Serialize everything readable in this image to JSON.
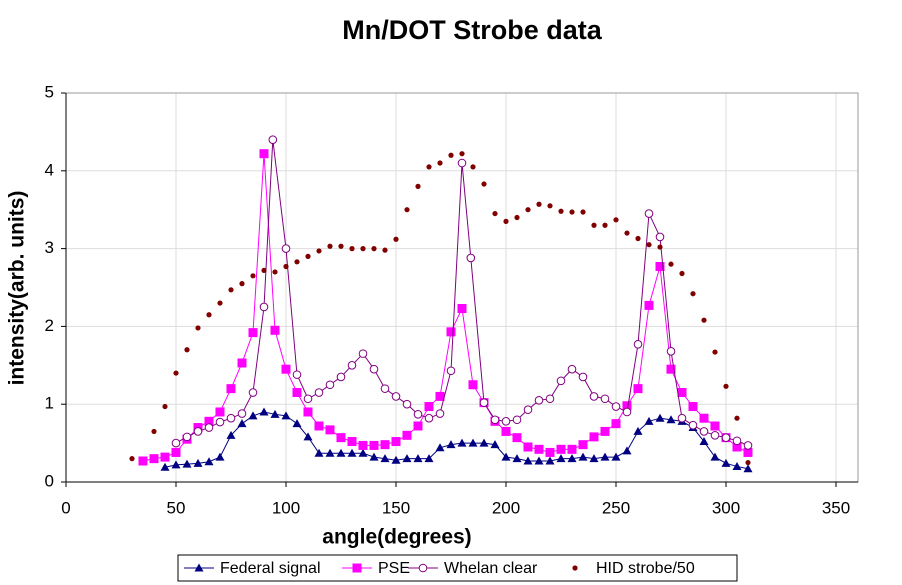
{
  "chart_data": {
    "type": "line",
    "title": "Mn/DOT Strobe data",
    "x_label": "angle(degrees)",
    "y_label": "intensity(arb. units)",
    "xlim": [
      0,
      360
    ],
    "xticks": [
      0,
      50,
      100,
      150,
      200,
      250,
      300,
      350
    ],
    "ylim": [
      0,
      5
    ],
    "yticks": [
      0,
      1,
      2,
      3,
      4,
      5
    ],
    "grid": true,
    "legend": "bottom",
    "series": [
      {
        "name": "Federal signal",
        "color": "#000080",
        "marker": "triangle",
        "line": true,
        "x": [
          45,
          50,
          55,
          60,
          65,
          70,
          75,
          80,
          85,
          90,
          95,
          100,
          105,
          110,
          115,
          120,
          125,
          130,
          135,
          140,
          145,
          150,
          155,
          160,
          165,
          170,
          175,
          180,
          185,
          190,
          195,
          200,
          205,
          210,
          215,
          220,
          225,
          230,
          235,
          240,
          245,
          250,
          255,
          260,
          265,
          270,
          275,
          280,
          285,
          290,
          295,
          300,
          305,
          310
        ],
        "values": [
          0.19,
          0.22,
          0.23,
          0.24,
          0.26,
          0.32,
          0.6,
          0.75,
          0.85,
          0.9,
          0.87,
          0.85,
          0.75,
          0.58,
          0.37,
          0.37,
          0.37,
          0.37,
          0.37,
          0.32,
          0.3,
          0.28,
          0.3,
          0.3,
          0.3,
          0.44,
          0.48,
          0.5,
          0.5,
          0.5,
          0.48,
          0.32,
          0.3,
          0.27,
          0.27,
          0.27,
          0.3,
          0.3,
          0.32,
          0.3,
          0.32,
          0.32,
          0.4,
          0.65,
          0.78,
          0.82,
          0.8,
          0.78,
          0.7,
          0.52,
          0.32,
          0.24,
          0.2,
          0.17
        ]
      },
      {
        "name": "PSE",
        "color": "#ff00ff",
        "marker": "square",
        "line": true,
        "x": [
          35,
          40,
          45,
          50,
          55,
          60,
          65,
          70,
          75,
          80,
          85,
          90,
          95,
          100,
          105,
          110,
          115,
          120,
          125,
          130,
          135,
          140,
          145,
          150,
          155,
          160,
          165,
          170,
          175,
          180,
          185,
          190,
          195,
          200,
          205,
          210,
          215,
          220,
          225,
          230,
          235,
          240,
          245,
          250,
          255,
          260,
          265,
          270,
          275,
          280,
          285,
          290,
          295,
          300,
          305,
          310
        ],
        "values": [
          0.27,
          0.3,
          0.32,
          0.38,
          0.55,
          0.7,
          0.78,
          0.9,
          1.2,
          1.53,
          1.92,
          4.22,
          1.95,
          1.45,
          1.15,
          0.9,
          0.72,
          0.67,
          0.57,
          0.52,
          0.47,
          0.47,
          0.48,
          0.52,
          0.6,
          0.72,
          0.97,
          1.1,
          1.93,
          2.23,
          1.25,
          1.02,
          0.78,
          0.65,
          0.57,
          0.45,
          0.42,
          0.38,
          0.42,
          0.42,
          0.48,
          0.58,
          0.65,
          0.75,
          0.98,
          1.2,
          2.27,
          2.77,
          1.45,
          1.15,
          0.97,
          0.82,
          0.72,
          0.57,
          0.45,
          0.38
        ]
      },
      {
        "name": "Whelan clear",
        "color": "#800080",
        "marker": "circle",
        "line": true,
        "x": [
          50,
          55,
          60,
          65,
          70,
          75,
          80,
          85,
          90,
          94,
          100,
          105,
          110,
          115,
          120,
          125,
          130,
          135,
          140,
          145,
          150,
          155,
          160,
          165,
          170,
          175,
          180,
          184,
          190,
          195,
          200,
          205,
          210,
          215,
          220,
          225,
          230,
          235,
          240,
          245,
          250,
          255,
          260,
          265,
          270,
          275,
          280,
          285,
          290,
          295,
          300,
          305,
          310
        ],
        "values": [
          0.5,
          0.58,
          0.65,
          0.7,
          0.77,
          0.82,
          0.88,
          1.15,
          2.25,
          4.4,
          3.0,
          1.38,
          1.07,
          1.15,
          1.25,
          1.35,
          1.5,
          1.65,
          1.45,
          1.2,
          1.1,
          1.0,
          0.87,
          0.82,
          0.88,
          1.43,
          4.1,
          2.88,
          1.02,
          0.8,
          0.78,
          0.8,
          0.93,
          1.05,
          1.07,
          1.3,
          1.45,
          1.35,
          1.1,
          1.07,
          0.97,
          0.9,
          1.77,
          3.45,
          3.15,
          1.68,
          0.82,
          0.73,
          0.65,
          0.6,
          0.57,
          0.53,
          0.47
        ]
      },
      {
        "name": "HID strobe/50",
        "color": "#800000",
        "marker": "dot",
        "line": false,
        "x": [
          30,
          40,
          45,
          50,
          55,
          60,
          65,
          70,
          75,
          80,
          85,
          90,
          95,
          100,
          105,
          110,
          115,
          120,
          125,
          130,
          135,
          140,
          145,
          150,
          155,
          160,
          165,
          170,
          175,
          180,
          185,
          190,
          195,
          200,
          205,
          210,
          215,
          220,
          225,
          230,
          235,
          240,
          245,
          250,
          255,
          260,
          265,
          270,
          275,
          280,
          285,
          290,
          295,
          300,
          305,
          310
        ],
        "values": [
          0.3,
          0.65,
          0.97,
          1.4,
          1.7,
          1.98,
          2.15,
          2.3,
          2.47,
          2.55,
          2.65,
          2.72,
          2.7,
          2.77,
          2.83,
          2.9,
          2.97,
          3.03,
          3.03,
          3.0,
          3.0,
          3.0,
          2.98,
          3.12,
          3.5,
          3.8,
          4.05,
          4.1,
          4.2,
          4.22,
          4.05,
          3.83,
          3.45,
          3.35,
          3.4,
          3.5,
          3.57,
          3.55,
          3.48,
          3.47,
          3.47,
          3.3,
          3.3,
          3.37,
          3.2,
          3.13,
          3.05,
          3.02,
          2.8,
          2.68,
          2.42,
          2.08,
          1.67,
          1.23,
          0.82,
          0.25
        ]
      }
    ]
  }
}
